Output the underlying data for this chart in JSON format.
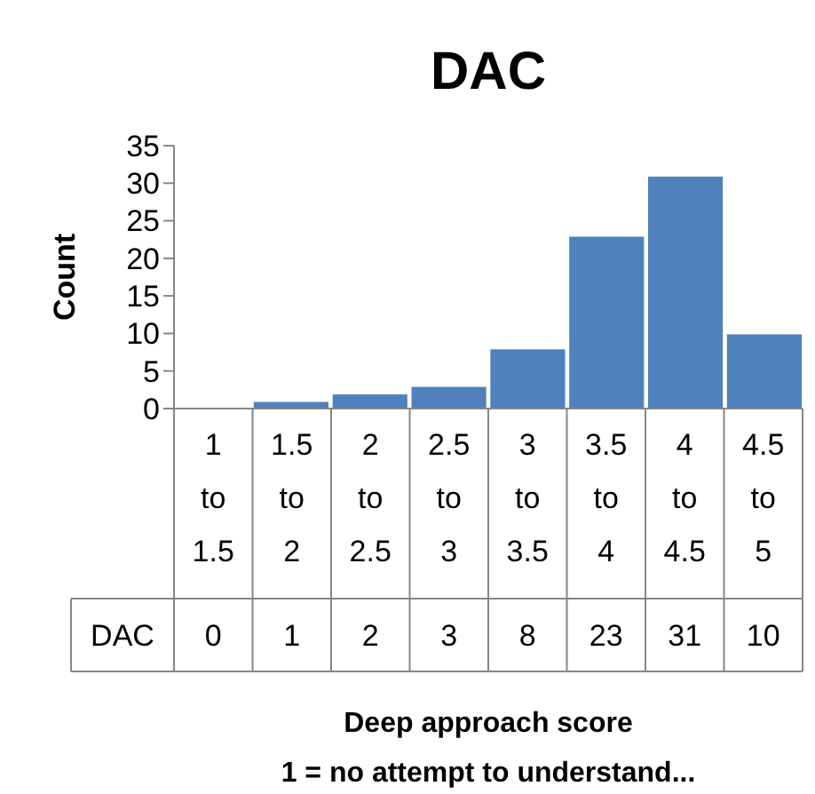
{
  "chart_data": {
    "type": "bar",
    "title": "DAC",
    "xlabel": "Deep approach score",
    "ylabel": "Count",
    "annotations": [
      "1 = no attempt to understand..."
    ],
    "categories": [
      "1 to 1.5",
      "1.5 to 2",
      "2 to 2.5",
      "2.5 to 3",
      "3 to 3.5",
      "3.5 to 4",
      "4 to 4.5",
      "4.5 to 5"
    ],
    "series": [
      {
        "name": "DAC",
        "color": "#4f81bd",
        "values": [
          0,
          1,
          2,
          3,
          8,
          23,
          31,
          10
        ]
      }
    ],
    "ylim": [
      0,
      35
    ],
    "yticks": [
      0,
      5,
      10,
      15,
      20,
      25,
      30,
      35
    ],
    "data_labels": true
  }
}
